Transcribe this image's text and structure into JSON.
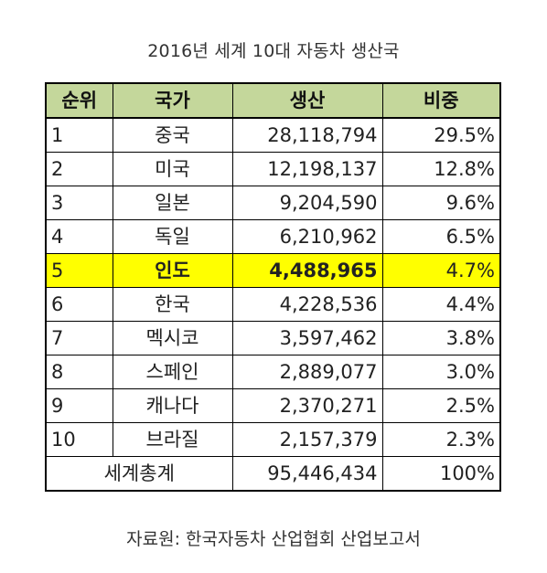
{
  "title": "2016년 세계 10대 자동차 생산국",
  "headers": {
    "rank": "순위",
    "country": "국가",
    "production": "생산",
    "share": "비중"
  },
  "rows": [
    {
      "rank": "1",
      "country": "중국",
      "production": "28,118,794",
      "share": "29.5%"
    },
    {
      "rank": "2",
      "country": "미국",
      "production": "12,198,137",
      "share": "12.8%"
    },
    {
      "rank": "3",
      "country": "일본",
      "production": "9,204,590",
      "share": "9.6%"
    },
    {
      "rank": "4",
      "country": "독일",
      "production": "6,210,962",
      "share": "6.5%"
    },
    {
      "rank": "5",
      "country": "인도",
      "production": "4,488,965",
      "share": "4.7%"
    },
    {
      "rank": "6",
      "country": "한국",
      "production": "4,228,536",
      "share": "4.4%"
    },
    {
      "rank": "7",
      "country": "멕시코",
      "production": "3,597,462",
      "share": "3.8%"
    },
    {
      "rank": "8",
      "country": "스페인",
      "production": "2,889,077",
      "share": "3.0%"
    },
    {
      "rank": "9",
      "country": "캐나다",
      "production": "2,370,271",
      "share": "2.5%"
    },
    {
      "rank": "10",
      "country": "브라질",
      "production": "2,157,379",
      "share": "2.3%"
    }
  ],
  "total": {
    "label": "세계총계",
    "production": "95,446,434",
    "share": "100%"
  },
  "source": "자료원: 한국자동차 산업협회 산업보고서",
  "colors": {
    "header_bg": "#c4d79b",
    "highlight_bg": "#ffff00"
  }
}
